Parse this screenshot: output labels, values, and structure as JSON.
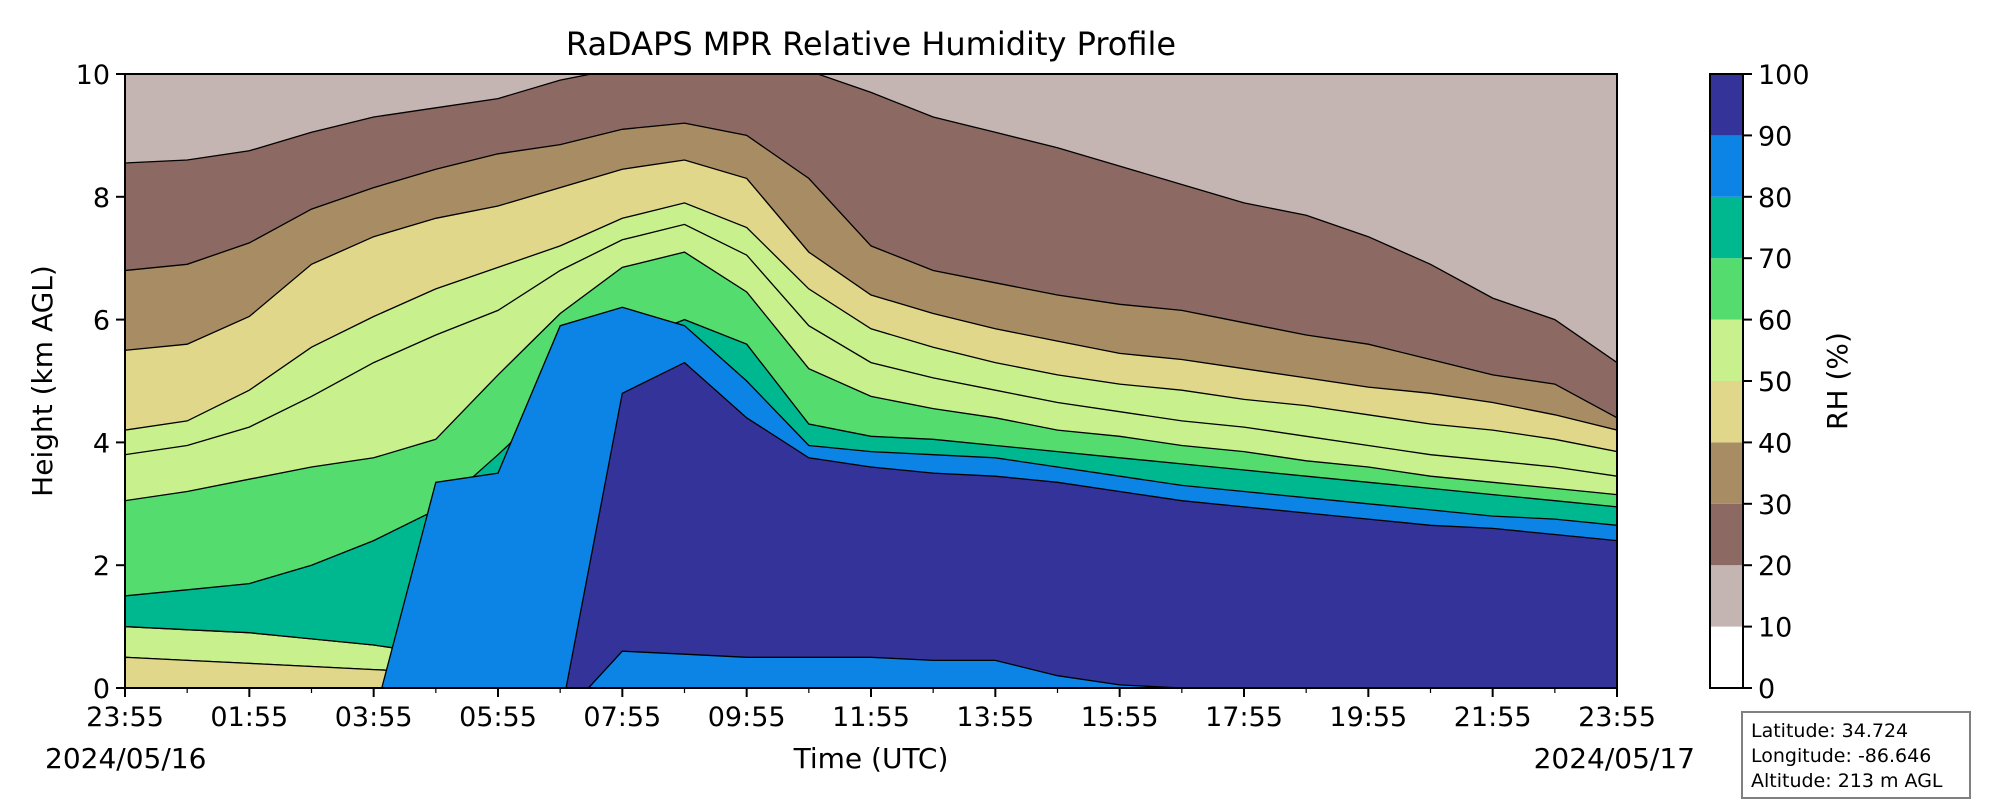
{
  "chart_data": {
    "type": "heatmap",
    "title": "RaDAPS MPR Relative Humidity Profile",
    "xlabel": "Time (UTC)",
    "ylabel": "Height (km AGL)",
    "xlim": [
      "2024-05-16 23:55",
      "2024-05-17 23:55"
    ],
    "ylim": [
      0,
      10
    ],
    "x_ticks": [
      "23:55",
      "01:55",
      "03:55",
      "05:55",
      "07:55",
      "09:55",
      "11:55",
      "13:55",
      "15:55",
      "17:55",
      "19:55",
      "21:55",
      "23:55"
    ],
    "y_ticks": [
      "0",
      "2",
      "4",
      "6",
      "8",
      "10"
    ],
    "start_date": "2024/05/16",
    "end_date": "2024/05/17",
    "colorbar": {
      "label": "RH (%)",
      "levels": [
        0,
        10,
        20,
        30,
        40,
        50,
        60,
        70,
        80,
        90,
        100
      ],
      "tick_labels": [
        "0",
        "10",
        "20",
        "30",
        "40",
        "50",
        "60",
        "70",
        "80",
        "90",
        "100"
      ],
      "colors": [
        "#ffffff",
        "#c4b5b2",
        "#8c6a63",
        "#a88c64",
        "#e0d78a",
        "#c8f08c",
        "#55dc6e",
        "#00b890",
        "#0c84e6",
        "#333399"
      ]
    },
    "hours": [
      0,
      1,
      2,
      3,
      4,
      5,
      6,
      7,
      8,
      9,
      10,
      11,
      12,
      13,
      14,
      15,
      16,
      17,
      18,
      19,
      20,
      21,
      22,
      23,
      24
    ],
    "contour_heights_km": {
      "10": [
        8.55,
        8.6,
        8.75,
        9.05,
        9.3,
        9.45,
        9.6,
        9.9,
        10.1,
        10.1,
        10.1,
        10.05,
        9.7,
        9.3,
        9.05,
        8.8,
        8.5,
        8.2,
        7.9,
        7.7,
        7.35,
        6.9,
        6.35,
        6.0,
        5.3
      ],
      "20": [
        6.8,
        6.9,
        7.25,
        7.8,
        8.15,
        8.45,
        8.7,
        8.85,
        9.1,
        9.2,
        9.0,
        8.3,
        7.2,
        6.8,
        6.6,
        6.4,
        6.25,
        6.15,
        5.95,
        5.75,
        5.6,
        5.35,
        5.1,
        4.95,
        4.4
      ],
      "30": [
        5.5,
        5.6,
        6.05,
        6.9,
        7.35,
        7.65,
        7.85,
        8.15,
        8.45,
        8.6,
        8.3,
        7.1,
        6.4,
        6.1,
        5.85,
        5.65,
        5.45,
        5.35,
        5.2,
        5.05,
        4.9,
        4.8,
        4.65,
        4.45,
        4.2
      ],
      "40": [
        4.2,
        4.35,
        4.85,
        5.55,
        6.05,
        6.5,
        6.85,
        7.2,
        7.65,
        7.9,
        7.5,
        6.5,
        5.85,
        5.55,
        5.3,
        5.1,
        4.95,
        4.85,
        4.7,
        4.6,
        4.45,
        4.3,
        4.2,
        4.05,
        3.85
      ],
      "50": [
        3.8,
        3.95,
        4.25,
        4.75,
        5.3,
        5.75,
        6.15,
        6.8,
        7.3,
        7.55,
        7.05,
        5.9,
        5.3,
        5.05,
        4.85,
        4.65,
        4.5,
        4.35,
        4.25,
        4.1,
        3.95,
        3.8,
        3.7,
        3.6,
        3.45
      ],
      "60": [
        3.05,
        3.2,
        3.4,
        3.6,
        3.75,
        4.05,
        5.1,
        6.1,
        6.85,
        7.1,
        6.45,
        5.2,
        4.75,
        4.55,
        4.4,
        4.2,
        4.1,
        3.95,
        3.85,
        3.7,
        3.6,
        3.45,
        3.35,
        3.25,
        3.15
      ],
      "70": [
        1.5,
        1.6,
        1.7,
        2.0,
        2.4,
        2.9,
        3.8,
        4.75,
        5.6,
        6.0,
        5.6,
        4.3,
        4.1,
        4.05,
        3.95,
        3.85,
        3.75,
        3.65,
        3.55,
        3.45,
        3.35,
        3.25,
        3.15,
        3.05,
        2.95
      ],
      "80": [
        -0.5,
        -0.5,
        -0.5,
        -0.5,
        -0.5,
        3.35,
        3.5,
        5.9,
        6.2,
        5.9,
        5.0,
        3.95,
        3.85,
        3.8,
        3.75,
        3.6,
        3.45,
        3.3,
        3.2,
        3.1,
        3.0,
        2.9,
        2.8,
        2.75,
        2.65
      ],
      "90": [
        -0.5,
        -0.5,
        -0.5,
        -0.5,
        -0.5,
        -0.5,
        -0.5,
        -0.5,
        4.8,
        5.3,
        4.4,
        3.75,
        3.6,
        3.5,
        3.45,
        3.35,
        3.2,
        3.05,
        2.95,
        2.85,
        2.75,
        2.65,
        2.6,
        2.5,
        2.4
      ]
    },
    "contour_low_km": {
      "60": [
        1.0,
        0.95,
        0.9,
        0.8,
        0.7,
        0.55,
        0.4,
        0.3,
        0.2,
        0.1,
        0.05,
        0.0,
        -0.5,
        -0.5,
        -0.5,
        -0.5,
        -0.5,
        -0.5,
        -0.5,
        -0.5,
        -0.5,
        -0.5,
        -0.5,
        -0.5,
        -0.5
      ],
      "50": [
        0.5,
        0.45,
        0.4,
        0.35,
        0.3,
        0.25,
        0.15,
        0.05,
        -0.5,
        -0.5,
        -0.5,
        -0.5,
        -0.5,
        -0.5,
        -0.5,
        -0.5,
        -0.5,
        -0.5,
        -0.5,
        -0.5,
        -0.5,
        -0.5,
        -0.5,
        -0.5,
        -0.5
      ],
      "70": [
        -0.5,
        -0.5,
        -0.5,
        -0.5,
        -0.5,
        -0.5,
        -0.5,
        -0.5,
        -0.5,
        -0.5,
        -0.5,
        -0.5,
        -0.5,
        -0.5,
        -0.5,
        -0.5,
        -0.5,
        -0.5,
        -0.5,
        -0.5,
        -0.5,
        -0.5,
        -0.5,
        -0.5,
        -0.5
      ],
      "90": [
        -0.5,
        -0.5,
        -0.5,
        -0.5,
        -0.5,
        -0.5,
        -0.5,
        -0.5,
        0.6,
        0.55,
        0.5,
        0.5,
        0.5,
        0.45,
        0.45,
        0.2,
        0.05,
        0.0,
        0.0,
        0.0,
        0.0,
        0.0,
        0.0,
        0.0,
        0.0
      ]
    }
  },
  "info": {
    "latitude": "Latitude: 34.724",
    "longitude": "Longitude: -86.646",
    "altitude": "Altitude: 213 m AGL"
  }
}
